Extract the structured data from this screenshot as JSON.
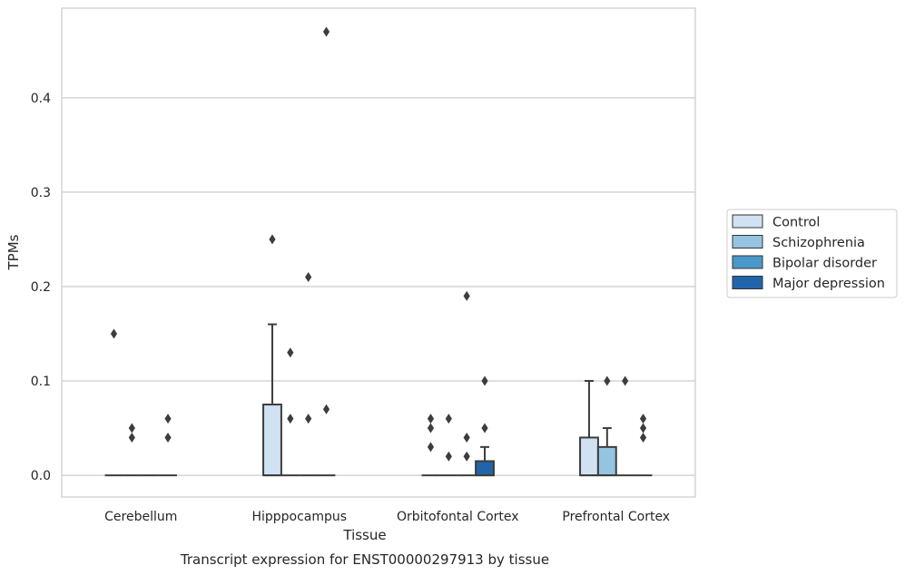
{
  "chart_data": {
    "type": "box",
    "caption": "Transcript expression for ENST00000297913 by tissue",
    "xlabel": "Tissue",
    "ylabel": "TPMs",
    "ylim": [
      -0.023,
      0.495
    ],
    "yticks": [
      0.0,
      0.1,
      0.2,
      0.3,
      0.4
    ],
    "ytick_labels": [
      "0.0",
      "0.1",
      "0.2",
      "0.3",
      "0.4"
    ],
    "grid": "horizontal",
    "legend_position": "right",
    "categories": [
      "Cerebellum",
      "Hipppocampus",
      "Orbitofontal Cortex",
      "Prefrontal Cortex"
    ],
    "series": [
      {
        "name": "Control",
        "color": "#d0e1f2",
        "boxes": [
          {
            "q1": 0,
            "median": 0,
            "q3": 0,
            "whislo": 0,
            "whishi": 0,
            "fliers": [
              0.15
            ]
          },
          {
            "q1": 0,
            "median": 0,
            "q3": 0.075,
            "whislo": 0,
            "whishi": 0.16,
            "fliers": [
              0.25
            ]
          },
          {
            "q1": 0,
            "median": 0,
            "q3": 0,
            "whislo": 0,
            "whishi": 0,
            "fliers": [
              0.03,
              0.05,
              0.06
            ]
          },
          {
            "q1": 0,
            "median": 0,
            "q3": 0.04,
            "whislo": 0,
            "whishi": 0.1,
            "fliers": []
          }
        ]
      },
      {
        "name": "Schizophrenia",
        "color": "#94c4df",
        "boxes": [
          {
            "q1": 0,
            "median": 0,
            "q3": 0,
            "whislo": 0,
            "whishi": 0,
            "fliers": [
              0.04,
              0.05
            ]
          },
          {
            "q1": 0,
            "median": 0,
            "q3": 0,
            "whislo": 0,
            "whishi": 0,
            "fliers": [
              0.06,
              0.13
            ]
          },
          {
            "q1": 0,
            "median": 0,
            "q3": 0,
            "whislo": 0,
            "whishi": 0,
            "fliers": [
              0.02,
              0.06
            ]
          },
          {
            "q1": 0,
            "median": 0,
            "q3": 0.03,
            "whislo": 0,
            "whishi": 0.05,
            "fliers": [
              0.1
            ]
          }
        ]
      },
      {
        "name": "Bipolar disorder",
        "color": "#4a98c9",
        "boxes": [
          {
            "q1": 0,
            "median": 0,
            "q3": 0,
            "whislo": 0,
            "whishi": 0,
            "fliers": []
          },
          {
            "q1": 0,
            "median": 0,
            "q3": 0,
            "whislo": 0,
            "whishi": 0,
            "fliers": [
              0.06,
              0.21
            ]
          },
          {
            "q1": 0,
            "median": 0,
            "q3": 0,
            "whislo": 0,
            "whishi": 0,
            "fliers": [
              0.02,
              0.04,
              0.19
            ]
          },
          {
            "q1": 0,
            "median": 0,
            "q3": 0,
            "whislo": 0,
            "whishi": 0,
            "fliers": [
              0.1
            ]
          }
        ]
      },
      {
        "name": "Major depression",
        "color": "#2264aa",
        "boxes": [
          {
            "q1": 0,
            "median": 0,
            "q3": 0,
            "whislo": 0,
            "whishi": 0,
            "fliers": [
              0.04,
              0.06
            ]
          },
          {
            "q1": 0,
            "median": 0,
            "q3": 0,
            "whislo": 0,
            "whishi": 0,
            "fliers": [
              0.07,
              0.47
            ]
          },
          {
            "q1": 0,
            "median": 0,
            "q3": 0.015,
            "whislo": 0,
            "whishi": 0.03,
            "fliers": [
              0.05,
              0.1
            ]
          },
          {
            "q1": 0,
            "median": 0,
            "q3": 0,
            "whislo": 0,
            "whishi": 0,
            "fliers": [
              0.04,
              0.05,
              0.06
            ]
          }
        ]
      }
    ]
  }
}
